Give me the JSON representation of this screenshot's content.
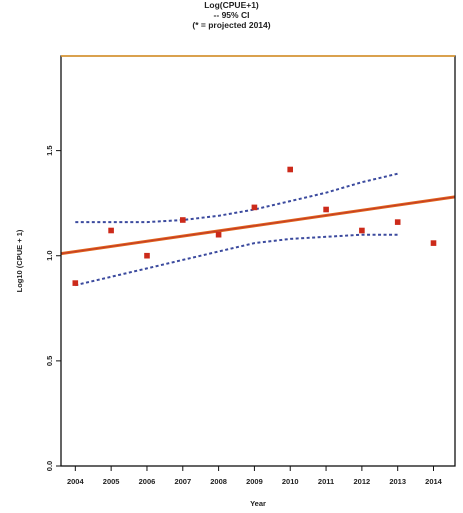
{
  "chart_data": {
    "type": "scatter",
    "title_lines": [
      "Log(CPUE+1)",
      "-- 95% CI",
      "(* = projected 2014)"
    ],
    "xlabel": "Year",
    "ylabel": "Log10 (CPUE + 1)",
    "x_ticks": [
      "2004",
      "2005",
      "2006",
      "2007",
      "2008",
      "2009",
      "2010",
      "2011",
      "2012",
      "2013",
      "2014"
    ],
    "y_ticks": [
      {
        "value": 0.0,
        "label": "0.0"
      },
      {
        "value": 0.5,
        "label": "0.5"
      },
      {
        "value": 1.0,
        "label": "1.0"
      },
      {
        "value": 1.5,
        "label": "1.5"
      }
    ],
    "ylim": [
      0.0,
      1.95
    ],
    "xlim": [
      2003.6,
      2014.6
    ],
    "points": [
      {
        "x": 2004,
        "y": 0.87
      },
      {
        "x": 2005,
        "y": 1.12
      },
      {
        "x": 2006,
        "y": 1.0
      },
      {
        "x": 2007,
        "y": 1.17
      },
      {
        "x": 2008,
        "y": 1.1
      },
      {
        "x": 2009,
        "y": 1.23
      },
      {
        "x": 2010,
        "y": 1.41
      },
      {
        "x": 2011,
        "y": 1.22
      },
      {
        "x": 2012,
        "y": 1.12
      },
      {
        "x": 2013,
        "y": 1.16
      },
      {
        "x": 2014,
        "y": 1.06
      }
    ],
    "trend_line": {
      "x": [
        2003.6,
        2014.6
      ],
      "y": [
        1.01,
        1.28
      ]
    },
    "ci_upper": {
      "x": [
        2004,
        2005,
        2006,
        2007,
        2008,
        2009,
        2010,
        2011,
        2012,
        2013
      ],
      "y": [
        1.16,
        1.16,
        1.16,
        1.17,
        1.19,
        1.22,
        1.26,
        1.3,
        1.35,
        1.39
      ]
    },
    "ci_lower": {
      "x": [
        2004,
        2005,
        2006,
        2007,
        2008,
        2009,
        2010,
        2011,
        2012,
        2013
      ],
      "y": [
        0.86,
        0.9,
        0.94,
        0.98,
        1.02,
        1.06,
        1.08,
        1.09,
        1.1,
        1.1
      ]
    },
    "colors": {
      "points": "#cc2a1a",
      "trend": "#e0631a",
      "trend_inner": "#c0392b",
      "ci": "#3b4a9e",
      "frame": "#111111",
      "top_border": "#e69a2a"
    }
  }
}
